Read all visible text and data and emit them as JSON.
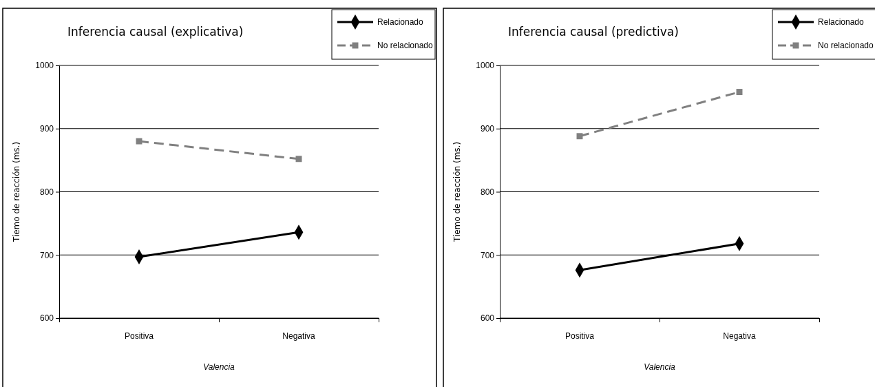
{
  "chart_data": [
    {
      "type": "line",
      "title": "Inferencia causal (explicativa)",
      "xlabel": "Valencia",
      "ylabel": "Tiemo de reacción (ms.)",
      "categories": [
        "Positiva",
        "Negativa"
      ],
      "ylim": [
        600,
        1000
      ],
      "yticks": [
        600,
        700,
        800,
        900,
        1000
      ],
      "grid": "y",
      "legend": "top right",
      "series": [
        {
          "name": "Relacionado",
          "color": "#000000",
          "values": [
            697,
            736
          ],
          "marker": "diamond",
          "line_style": "solid"
        },
        {
          "name": "No relacionado",
          "color": "#808080",
          "values": [
            880,
            852
          ],
          "marker": "square",
          "line_style": "dashed"
        }
      ]
    },
    {
      "type": "line",
      "title": "Inferencia causal (predictiva)",
      "xlabel": "Valencia",
      "ylabel": "Tiemo de reacción (ms.)",
      "categories": [
        "Positiva",
        "Negativa"
      ],
      "ylim": [
        600,
        1000
      ],
      "yticks": [
        600,
        700,
        800,
        900,
        1000
      ],
      "grid": "y",
      "legend": "top right",
      "series": [
        {
          "name": "Relacionado",
          "color": "#000000",
          "values": [
            676,
            718
          ],
          "marker": "diamond",
          "line_style": "solid"
        },
        {
          "name": "No relacionado",
          "color": "#808080",
          "values": [
            888,
            958
          ],
          "marker": "square",
          "line_style": "dashed"
        }
      ]
    }
  ]
}
